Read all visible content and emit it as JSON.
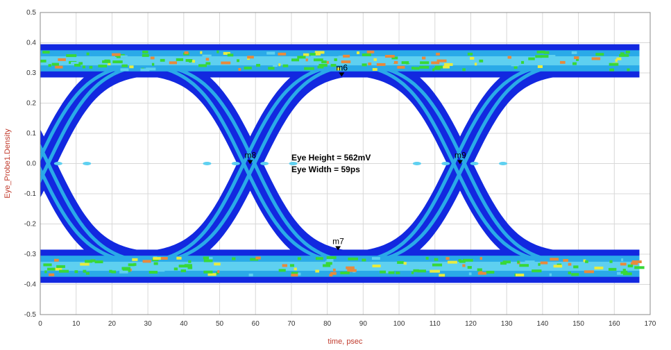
{
  "chart_data": {
    "type": "eye-diagram",
    "xlabel": "time, psec",
    "ylabel": "Eye_Probe1.Density",
    "xlim": [
      0,
      170
    ],
    "ylim": [
      -0.5,
      0.5
    ],
    "x_ticks": [
      0,
      10,
      20,
      30,
      40,
      50,
      60,
      70,
      80,
      90,
      100,
      110,
      120,
      130,
      140,
      150,
      160,
      170
    ],
    "y_ticks": [
      0.5,
      0.4,
      0.3,
      0.2,
      0.1,
      0.0,
      -0.1,
      -0.2,
      -0.3,
      -0.4,
      -0.5
    ],
    "y_tick_labels": [
      "0.5",
      "0.4",
      "0.3",
      "0.2",
      "0.1",
      "0.0",
      "-0.1",
      "-0.2",
      "-0.3",
      "-0.4",
      "-0.5"
    ],
    "grid": true,
    "density_colors": {
      "low": "#1228e0",
      "mid": "#2aaae8",
      "band": "#5ed0f0",
      "green": "#38d838",
      "yellow": "#e8ec40",
      "orange": "#e88a3c"
    },
    "signal": {
      "high_level": 0.34,
      "low_level": -0.34,
      "crossings_x": [
        1,
        58.5,
        117
      ],
      "unit_interval": 58.5,
      "data_span_x": [
        0,
        167
      ]
    },
    "markers": [
      {
        "name": "m6",
        "x": 84,
        "y": 0.29
      },
      {
        "name": "m7",
        "x": 83,
        "y": -0.285
      },
      {
        "name": "m8",
        "x": 58.5,
        "y": 0.0
      },
      {
        "name": "m9",
        "x": 117,
        "y": 0.0
      }
    ],
    "annotations": [
      {
        "text": "Eye Height = 562mV",
        "x": 70,
        "y": 0.02
      },
      {
        "text": "Eye Width = 59ps",
        "x": 70,
        "y": -0.02
      }
    ]
  }
}
